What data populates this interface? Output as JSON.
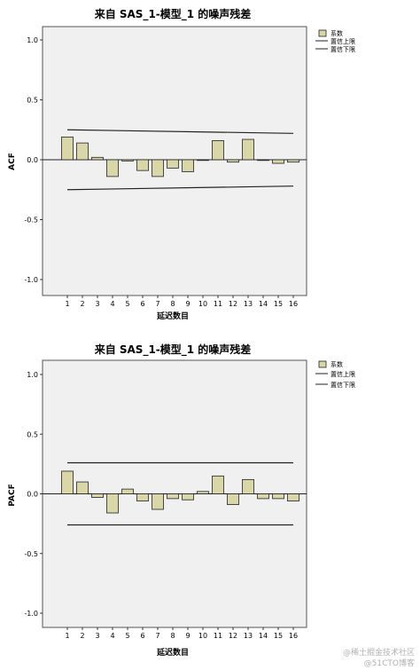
{
  "colors": {
    "bar_fill": "#d9d6a8",
    "bar_stroke": "#222222",
    "panel_bg": "#f0f0f0",
    "limit_line": "#222222"
  },
  "legend": {
    "items": [
      "系数",
      "置信上限",
      "置信下限"
    ]
  },
  "watermark": {
    "line1": "@稀土掘金技术社区",
    "line2": "@51CTO博客"
  },
  "chart_data": [
    {
      "type": "bar",
      "title": "来自 SAS_1-模型_1 的噪声残差",
      "xlabel": "延迟数目",
      "ylabel": "ACF",
      "ylim": [
        -1.0,
        1.0
      ],
      "yticks": [
        "1.0",
        "0.5",
        "0.0",
        "-0.5",
        "-1.0"
      ],
      "ytick_values": [
        1.0,
        0.5,
        0.0,
        -0.5,
        -1.0
      ],
      "categories": [
        "1",
        "2",
        "3",
        "4",
        "5",
        "6",
        "7",
        "8",
        "9",
        "10",
        "11",
        "12",
        "13",
        "14",
        "15",
        "16"
      ],
      "values": [
        0.19,
        0.14,
        0.02,
        -0.14,
        -0.01,
        -0.09,
        -0.14,
        -0.07,
        -0.1,
        0.0,
        0.16,
        -0.02,
        0.17,
        0.0,
        -0.03,
        -0.02
      ],
      "upper_limit": [
        0.25,
        0.22
      ],
      "lower_limit": [
        -0.25,
        -0.22
      ],
      "grid": false,
      "legend_position": "right"
    },
    {
      "type": "bar",
      "title": "来自 SAS_1-模型_1 的噪声残差",
      "xlabel": "延迟数目",
      "ylabel": "PACF",
      "ylim": [
        -1.0,
        1.0
      ],
      "yticks": [
        "1.0",
        "0.5",
        "0.0",
        "-0.5",
        "-1.0"
      ],
      "ytick_values": [
        1.0,
        0.5,
        0.0,
        -0.5,
        -1.0
      ],
      "categories": [
        "1",
        "2",
        "3",
        "4",
        "5",
        "6",
        "7",
        "8",
        "9",
        "10",
        "11",
        "12",
        "13",
        "14",
        "15",
        "16"
      ],
      "values": [
        0.19,
        0.1,
        -0.03,
        -0.16,
        0.04,
        -0.06,
        -0.13,
        -0.04,
        -0.05,
        0.02,
        0.15,
        -0.09,
        0.12,
        -0.04,
        -0.04,
        -0.06
      ],
      "upper_limit": [
        0.26,
        0.26
      ],
      "lower_limit": [
        -0.26,
        -0.26
      ],
      "grid": false,
      "legend_position": "right"
    }
  ]
}
